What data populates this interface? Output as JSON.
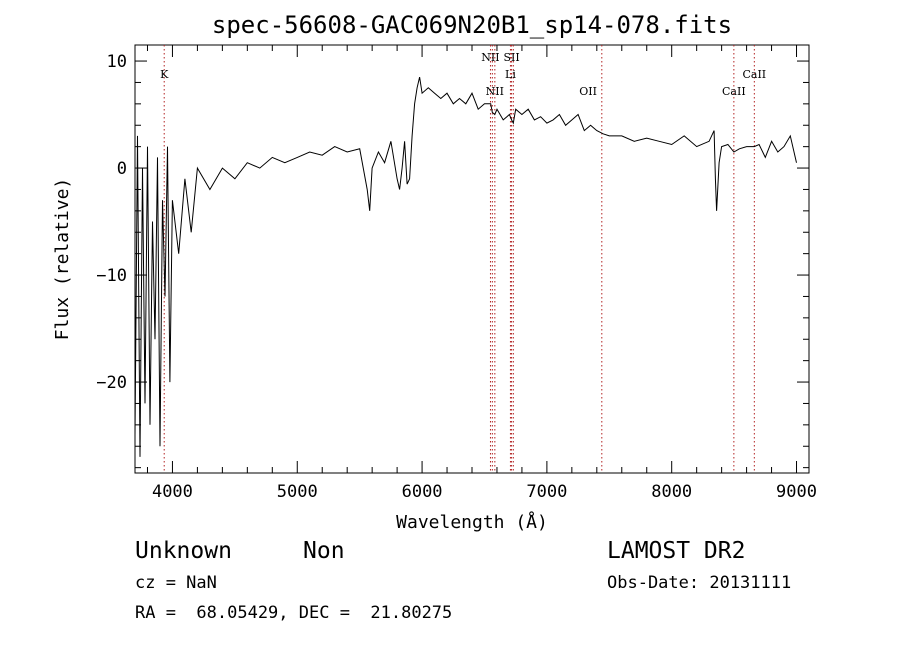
{
  "chart_data": {
    "type": "line",
    "title": "spec-56608-GAC069N20B1_sp14-078.fits",
    "xlabel": "Wavelength (Å)",
    "ylabel": "Flux (relative)",
    "xlim": [
      3700,
      9100
    ],
    "ylim": [
      -28.5,
      11.5
    ],
    "xticks": [
      4000,
      5000,
      6000,
      7000,
      8000,
      9000
    ],
    "yticks": [
      10,
      0,
      -10,
      -20
    ],
    "ytick_labels": [
      "10",
      "0",
      "−10",
      "−20"
    ],
    "grid": false,
    "series": [
      {
        "x": [
          3700,
          3720,
          3740,
          3760,
          3780,
          3800,
          3820,
          3840,
          3860,
          3880,
          3900,
          3920,
          3940,
          3960,
          3980,
          4000,
          4050,
          4100,
          4150,
          4200,
          4300,
          4400,
          4500,
          4600,
          4700,
          4800,
          4900,
          5000,
          5100,
          5200,
          5300,
          5400,
          5500,
          5560,
          5580,
          5600,
          5650,
          5700,
          5750,
          5800,
          5820,
          5840,
          5860,
          5880,
          5900,
          5920,
          5940,
          5960,
          5980,
          6000,
          6050,
          6100,
          6150,
          6200,
          6250,
          6300,
          6350,
          6400,
          6450,
          6500,
          6550,
          6563,
          6583,
          6600,
          6650,
          6680,
          6700,
          6717,
          6731,
          6750,
          6800,
          6850,
          6900,
          6950,
          7000,
          7050,
          7100,
          7150,
          7200,
          7250,
          7300,
          7350,
          7400,
          7450,
          7500,
          7600,
          7700,
          7800,
          7900,
          8000,
          8100,
          8200,
          8300,
          8340,
          8350,
          8360,
          8380,
          8400,
          8450,
          8498,
          8542,
          8600,
          8662,
          8700,
          8750,
          8800,
          8850,
          8900,
          8950,
          9000
        ],
        "y": [
          -25,
          3,
          -27,
          0,
          -22,
          2,
          -24,
          -5,
          -16,
          1,
          -26,
          -3,
          -12,
          2,
          -20,
          -3,
          -8,
          -1,
          -6,
          0,
          -2,
          0,
          -1,
          0.5,
          0,
          1,
          0.5,
          1,
          1.5,
          1.2,
          2,
          1.5,
          1.8,
          -2,
          -4,
          0,
          1.5,
          0.5,
          2.5,
          -1,
          -2,
          0,
          2.5,
          -1.5,
          -1,
          3,
          6,
          7.5,
          8.5,
          7,
          7.5,
          7,
          6.5,
          7,
          6,
          6.5,
          6,
          7,
          5.5,
          6,
          6,
          5.2,
          5,
          5.5,
          4.5,
          4.8,
          5,
          4.5,
          4.2,
          5.5,
          5,
          5.5,
          4.5,
          4.8,
          4.2,
          4.5,
          5,
          4,
          4.5,
          5,
          3.5,
          4,
          3.5,
          3.2,
          3,
          3,
          2.5,
          2.8,
          2.5,
          2.2,
          3,
          2,
          2.5,
          3.5,
          -1,
          -4,
          0.5,
          2,
          2.2,
          1.5,
          1.8,
          2,
          2,
          2.2,
          1,
          2.5,
          1.5,
          2,
          3,
          0.5
        ]
      }
    ],
    "annotations": [
      {
        "label": "K",
        "x": 3934,
        "row": 1
      },
      {
        "label": "NII",
        "x": 6548,
        "row": 0
      },
      {
        "label": "NII",
        "x": 6583,
        "row": 2
      },
      {
        "label": "SII",
        "x": 6717,
        "row": 0
      },
      {
        "label": "Li",
        "x": 6708,
        "row": 1
      },
      {
        "label": "OII",
        "x": 7330,
        "row": 2
      },
      {
        "label": "CaII",
        "x": 8498,
        "row": 2
      },
      {
        "label": "CaII",
        "x": 8662,
        "row": 1
      }
    ],
    "line_markers": [
      3934,
      6548,
      6563,
      6583,
      6708,
      6717,
      6731,
      7440,
      8498,
      8662
    ]
  },
  "info": {
    "object_class": "Unknown",
    "object_subclass": "Non",
    "survey": "LAMOST DR2",
    "cz": "cz = NaN",
    "obs_date": "Obs-Date: 20131111",
    "coords": "RA =  68.05429, DEC =  21.80275"
  }
}
